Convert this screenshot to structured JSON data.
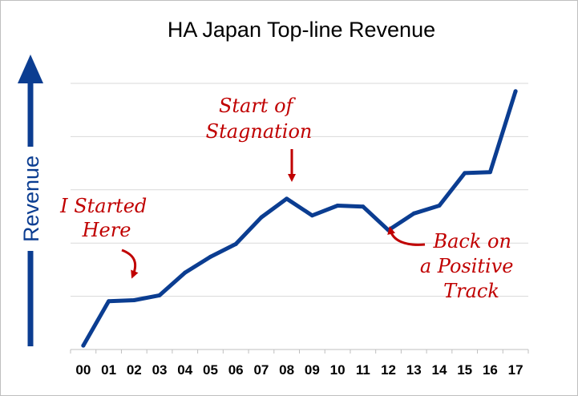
{
  "chart_data": {
    "type": "line",
    "title": "HA Japan Top-line Revenue",
    "xlabel": "",
    "ylabel": "Revenue",
    "y_axis_numbered": false,
    "grid": "horizontal",
    "categories": [
      "00",
      "01",
      "02",
      "03",
      "04",
      "05",
      "06",
      "07",
      "08",
      "09",
      "10",
      "11",
      "12",
      "13",
      "14",
      "15",
      "16",
      "17"
    ],
    "series": [
      {
        "values": [
          4,
          49,
          50,
          55,
          78,
          94,
          107,
          134,
          153,
          136,
          146,
          145,
          121,
          138,
          146,
          179,
          180,
          262
        ]
      }
    ],
    "ylim": [
      0,
      270
    ],
    "annotations": [
      {
        "lines": [
          "I Started",
          "Here"
        ],
        "points_to": "02"
      },
      {
        "lines": [
          "Start of",
          "Stagnation"
        ],
        "points_to": "08"
      },
      {
        "lines": [
          "Back on",
          "a Positive",
          "Track"
        ],
        "points_to": "12"
      }
    ],
    "colors": {
      "line": "#0b3d91",
      "annotation": "#c00000",
      "grid": "#d9d9d9"
    }
  }
}
